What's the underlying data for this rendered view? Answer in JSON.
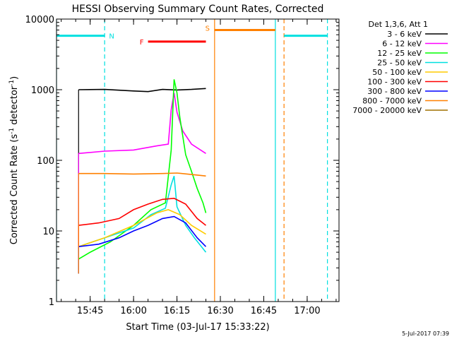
{
  "chart_data": {
    "type": "line",
    "title": "HESSI Observing Summary Count Rates, Corrected",
    "xlabel": "Start Time (03-Jul-17 15:33:22)",
    "ylabel_main": "Corrected Count Rate (s",
    "ylabel_sup1": "-1",
    "ylabel_mid": " detector",
    "ylabel_sup2": "-1",
    "ylabel_end": ")",
    "yscale": "log",
    "ylim": [
      1,
      10000
    ],
    "xlim": [
      "15:33:22",
      "17:11:00"
    ],
    "yticks": [
      {
        "value": 1,
        "label": "1"
      },
      {
        "value": 10,
        "label": "10"
      },
      {
        "value": 100,
        "label": "100"
      },
      {
        "value": 1000,
        "label": "1000"
      },
      {
        "value": 10000,
        "label": "10000"
      }
    ],
    "xticks": [
      {
        "value": "15:45",
        "label": "15:45"
      },
      {
        "value": "16:00",
        "label": "16:00"
      },
      {
        "value": "16:15",
        "label": "16:15"
      },
      {
        "value": "16:30",
        "label": "16:30"
      },
      {
        "value": "16:45",
        "label": "16:45"
      },
      {
        "value": "17:00",
        "label": "17:00"
      }
    ],
    "footer": "5-Jul-2017 07:39",
    "legend_header": "Det 1,3,6, Att 1",
    "legend_placement": "right",
    "series": [
      {
        "name": "3 - 6 keV",
        "color": "#000000",
        "points": [
          [
            "15:41:00",
            1000
          ],
          [
            "15:50:00",
            1010
          ],
          [
            "16:00:00",
            960
          ],
          [
            "16:05:00",
            940
          ],
          [
            "16:10:00",
            1010
          ],
          [
            "16:15:00",
            990
          ],
          [
            "16:20:00",
            1010
          ],
          [
            "16:25:00",
            1040
          ]
        ]
      },
      {
        "name": "6 - 12 keV",
        "color": "#ff00ff",
        "points": [
          [
            "15:41:00",
            125
          ],
          [
            "15:50:00",
            135
          ],
          [
            "16:00:00",
            140
          ],
          [
            "16:08:00",
            160
          ],
          [
            "16:12:00",
            170
          ],
          [
            "16:13:00",
            520
          ],
          [
            "16:14:00",
            900
          ],
          [
            "16:15:00",
            480
          ],
          [
            "16:17:00",
            260
          ],
          [
            "16:20:00",
            170
          ],
          [
            "16:25:00",
            125
          ]
        ]
      },
      {
        "name": "12 - 25 keV",
        "color": "#00ff00",
        "points": [
          [
            "15:41:00",
            4
          ],
          [
            "15:45:00",
            5
          ],
          [
            "15:52:00",
            7
          ],
          [
            "16:00:00",
            12
          ],
          [
            "16:06:00",
            20
          ],
          [
            "16:11:00",
            25
          ],
          [
            "16:13:00",
            140
          ],
          [
            "16:14:00",
            1400
          ],
          [
            "16:15:00",
            900
          ],
          [
            "16:16:00",
            400
          ],
          [
            "16:18:00",
            120
          ],
          [
            "16:20:00",
            70
          ],
          [
            "16:22:00",
            40
          ],
          [
            "16:24:00",
            25
          ],
          [
            "16:25:00",
            18
          ]
        ]
      },
      {
        "name": "25 - 50 keV",
        "color": "#00e0e0",
        "points": [
          [
            "15:41:00",
            6
          ],
          [
            "15:50:00",
            8
          ],
          [
            "16:00:00",
            11
          ],
          [
            "16:06:00",
            17
          ],
          [
            "16:11:00",
            21
          ],
          [
            "16:13:00",
            45
          ],
          [
            "16:14:00",
            60
          ],
          [
            "16:15:00",
            22
          ],
          [
            "16:18:00",
            12
          ],
          [
            "16:21:00",
            8
          ],
          [
            "16:25:00",
            5
          ]
        ]
      },
      {
        "name": "50 - 100 keV",
        "color": "#ffcc00",
        "points": [
          [
            "15:41:00",
            6
          ],
          [
            "15:50:00",
            8
          ],
          [
            "16:00:00",
            12
          ],
          [
            "16:08:00",
            18
          ],
          [
            "16:12:00",
            20
          ],
          [
            "16:16:00",
            17
          ],
          [
            "16:20:00",
            12
          ],
          [
            "16:25:00",
            9
          ]
        ]
      },
      {
        "name": "100 - 300 keV",
        "color": "#ff0000",
        "points": [
          [
            "15:41:00",
            12
          ],
          [
            "15:48:00",
            13
          ],
          [
            "15:55:00",
            15
          ],
          [
            "16:00:00",
            20
          ],
          [
            "16:05:00",
            24
          ],
          [
            "16:10:00",
            28
          ],
          [
            "16:14:00",
            29
          ],
          [
            "16:18:00",
            24
          ],
          [
            "16:22:00",
            15
          ],
          [
            "16:25:00",
            12
          ]
        ]
      },
      {
        "name": "300 - 800 keV",
        "color": "#0000ff",
        "points": [
          [
            "15:41:00",
            6
          ],
          [
            "15:48:00",
            6.5
          ],
          [
            "15:55:00",
            8
          ],
          [
            "16:00:00",
            10
          ],
          [
            "16:05:00",
            12
          ],
          [
            "16:10:00",
            15
          ],
          [
            "16:14:00",
            16
          ],
          [
            "16:18:00",
            13
          ],
          [
            "16:22:00",
            8
          ],
          [
            "16:25:00",
            6
          ]
        ]
      },
      {
        "name": "800 - 7000 keV",
        "color": "#ff8000",
        "points": [
          [
            "15:41:00",
            65
          ],
          [
            "15:50:00",
            65
          ],
          [
            "16:00:00",
            64
          ],
          [
            "16:10:00",
            65
          ],
          [
            "16:15:00",
            66
          ],
          [
            "16:20:00",
            63
          ],
          [
            "16:25:00",
            60
          ]
        ]
      },
      {
        "name": "7000 - 20000 keV",
        "color": "#a07000",
        "points": []
      }
    ],
    "flag_bars": [
      {
        "label": "N",
        "color": "#00e0e0",
        "value": 5800,
        "segments": [
          [
            "15:33:22",
            "15:50:00"
          ],
          [
            "16:52:00",
            "17:07:00"
          ]
        ]
      },
      {
        "label": "F",
        "color": "#ff0000",
        "value": 4800,
        "segments": [
          [
            "16:05:00",
            "16:25:00"
          ]
        ]
      },
      {
        "label": "S",
        "color": "#ff8000",
        "value": 7000,
        "segments": [
          [
            "16:28:00",
            "16:49:00"
          ]
        ]
      }
    ],
    "vertical_lines": [
      {
        "x": "15:33:22",
        "color": "#00e0e0",
        "style": "solid"
      },
      {
        "x": "15:50:00",
        "color": "#00e0e0",
        "style": "dashed"
      },
      {
        "x": "16:28:00",
        "color": "#ff8000",
        "style": "solid"
      },
      {
        "x": "16:49:00",
        "color": "#00e0e0",
        "style": "solid"
      },
      {
        "x": "16:52:00",
        "color": "#ff8000",
        "style": "dashed"
      },
      {
        "x": "17:07:00",
        "color": "#00e0e0",
        "style": "dashed"
      }
    ]
  }
}
